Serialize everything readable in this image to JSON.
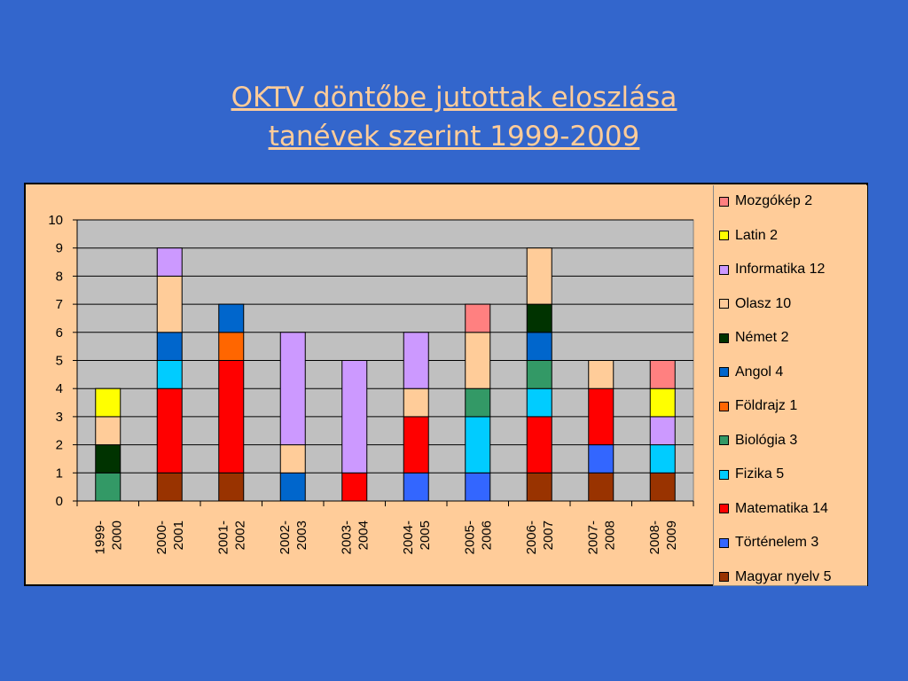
{
  "title_lines": [
    "OKTV döntőbe jutottak eloszlása",
    "tanévek szerint   1999-2009"
  ],
  "chart_data": {
    "type": "bar",
    "stacked": true,
    "categories": [
      [
        "1999-",
        "2000"
      ],
      [
        "2000-",
        "2001"
      ],
      [
        "2001-",
        "2002"
      ],
      [
        "2002-",
        "2003"
      ],
      [
        "2003-",
        "2004"
      ],
      [
        "2004-",
        "2005"
      ],
      [
        "2005-",
        "2006"
      ],
      [
        "2006-",
        "2007"
      ],
      [
        "2007-",
        "2008"
      ],
      [
        "2008-",
        "2009"
      ]
    ],
    "ylim": [
      0,
      10
    ],
    "yticks": [
      "0",
      "1",
      "2",
      "3",
      "4",
      "5",
      "6",
      "7",
      "8",
      "9",
      "10"
    ],
    "grid": true,
    "legend_position": "right",
    "series": [
      {
        "name": "Magyar nyelv  5",
        "color": "#993300",
        "values": [
          0,
          1,
          1,
          0,
          0,
          0,
          0,
          1,
          1,
          1
        ]
      },
      {
        "name": "Történelem 3",
        "color": "#3366FF",
        "values": [
          0,
          0,
          0,
          0,
          0,
          1,
          1,
          0,
          1,
          0
        ]
      },
      {
        "name": "Matematika 14",
        "color": "#FF0000",
        "values": [
          0,
          3,
          4,
          0,
          1,
          2,
          0,
          2,
          2,
          0
        ]
      },
      {
        "name": "Fizika 5",
        "color": "#00CCFF",
        "values": [
          0,
          1,
          0,
          0,
          0,
          0,
          2,
          1,
          0,
          1
        ]
      },
      {
        "name": "Biológia 3",
        "color": "#339966",
        "values": [
          1,
          0,
          0,
          0,
          0,
          0,
          1,
          1,
          0,
          0
        ]
      },
      {
        "name": "Földrajz 1",
        "color": "#FF6600",
        "values": [
          0,
          0,
          1,
          0,
          0,
          0,
          0,
          0,
          0,
          0
        ]
      },
      {
        "name": "Angol 4",
        "color": "#0066CC",
        "values": [
          0,
          1,
          1,
          1,
          0,
          0,
          0,
          1,
          0,
          0
        ]
      },
      {
        "name": "Német 2",
        "color": "#003300",
        "values": [
          1,
          0,
          0,
          0,
          0,
          0,
          0,
          1,
          0,
          0
        ]
      },
      {
        "name": "Olasz 10",
        "color": "#FFCC99",
        "values": [
          1,
          2,
          0,
          1,
          0,
          1,
          2,
          2,
          1,
          0
        ]
      },
      {
        "name": "Informatika 12",
        "color": "#CC99FF",
        "values": [
          0,
          1,
          0,
          4,
          4,
          2,
          0,
          0,
          0,
          1
        ]
      },
      {
        "name": "Latin 2",
        "color": "#FFFF00",
        "values": [
          1,
          0,
          0,
          0,
          0,
          0,
          0,
          0,
          0,
          1
        ]
      },
      {
        "name": "Mozgókép 2",
        "color": "#FF8080",
        "values": [
          0,
          0,
          0,
          0,
          0,
          0,
          1,
          0,
          0,
          1
        ]
      }
    ],
    "plot_bg": "#C0C0C0",
    "chart_bg": "#FFCC99"
  }
}
